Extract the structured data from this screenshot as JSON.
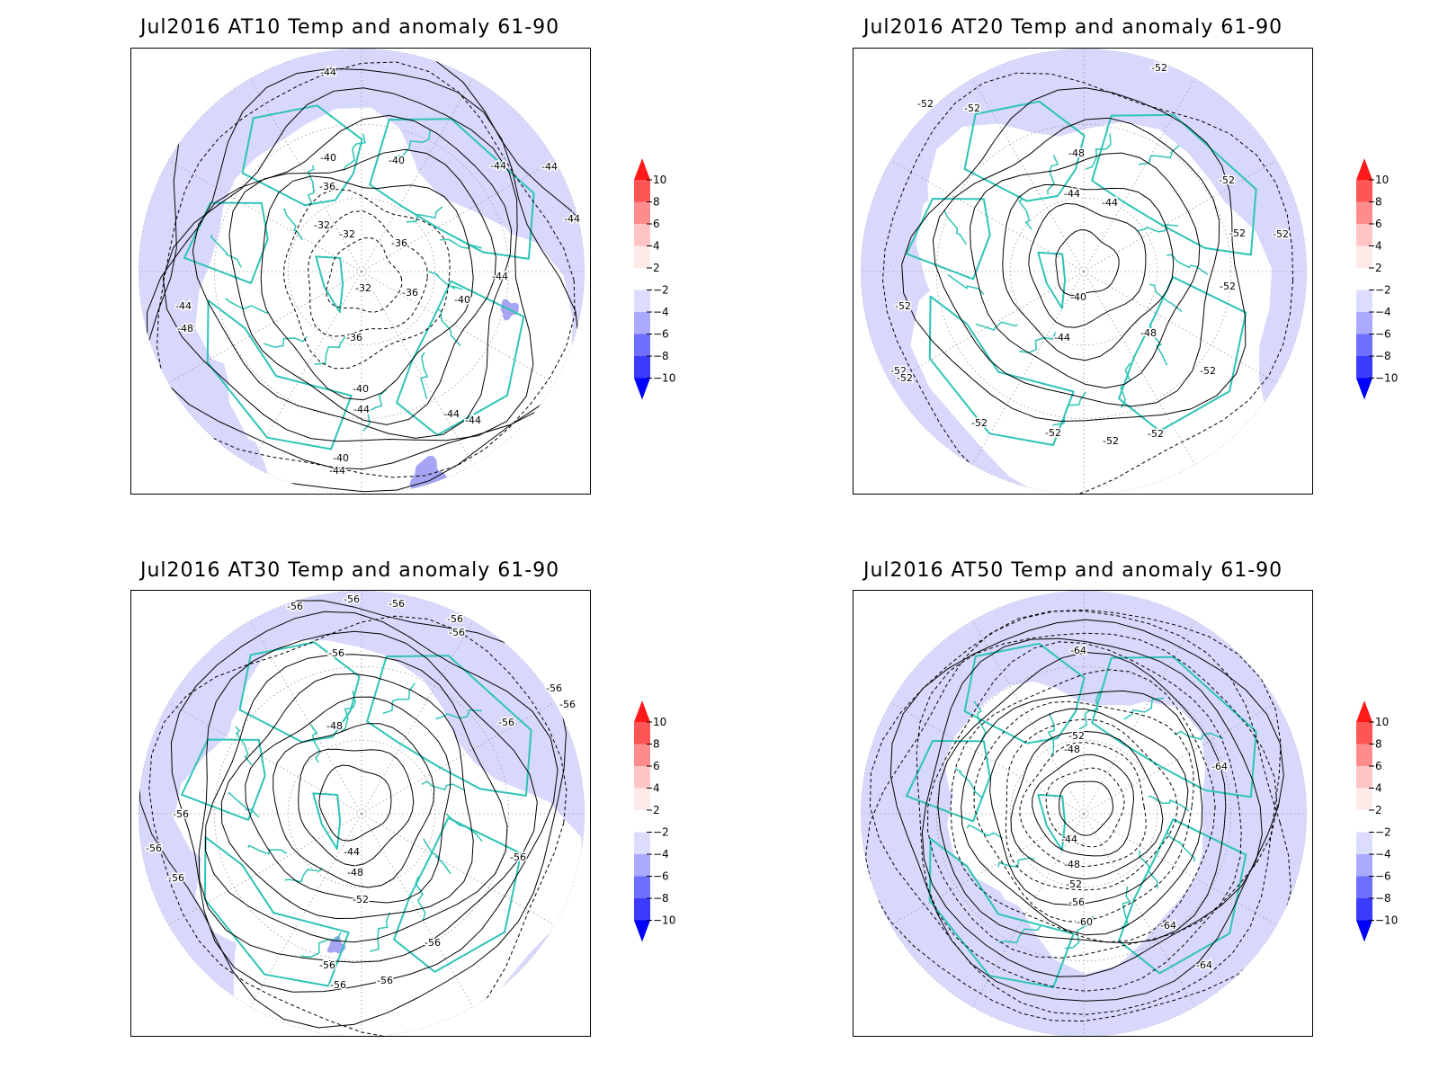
{
  "colorbar": {
    "labels": [
      "10",
      "8",
      "6",
      "4",
      "2",
      "−2",
      "−4",
      "−6",
      "−8",
      "−10"
    ],
    "colors": [
      "#ff1a1a",
      "#ff5555",
      "#ff8c8c",
      "#ffc4c4",
      "#ffeaea",
      "#ffffff",
      "#dcdcff",
      "#aaaaff",
      "#6f6fff",
      "#3b3bff",
      "#0000ff"
    ]
  },
  "colors": {
    "anomaly_fill": "#d8d8fc",
    "anomaly_strong": "#a5a5f3",
    "coastline": "#2ec4b6",
    "contour": "#000000",
    "grid": "#999999"
  },
  "panels": [
    {
      "title": "Jul2016 AT10 Temp and anomaly 61-90",
      "contour_labels": [
        "-44",
        "-40",
        "-40",
        "-36",
        "-32",
        "-32",
        "-32",
        "-36",
        "-36",
        "-40",
        "-36",
        "-40",
        "-44",
        "-44",
        "-44",
        "-44",
        "-44",
        "-44",
        "-44",
        "-48",
        "-40",
        "-44",
        "-44"
      ]
    },
    {
      "title": "Jul2016 AT20 Temp and anomaly 61-90",
      "contour_labels": [
        "-52",
        "-52",
        "-52",
        "-48",
        "-44",
        "-44",
        "-40",
        "-44",
        "-48",
        "-52",
        "-52",
        "-52",
        "-52",
        "-52",
        "-52",
        "-52",
        "-52",
        "-52",
        "-52",
        "-52",
        "-52"
      ]
    },
    {
      "title": "Jul2016 AT30 Temp and anomaly 61-90",
      "contour_labels": [
        "-56",
        "-56",
        "-56",
        "-56",
        "-56",
        "-56",
        "-56",
        "-48",
        "-44",
        "-48",
        "-52",
        "-56",
        "-56",
        "-56",
        "-56",
        "-56",
        "-56",
        "-56",
        "-56",
        "-56",
        "-56"
      ]
    },
    {
      "title": "Jul2016 AT50 Temp and anomaly 61-90",
      "contour_labels": [
        "-64",
        "-52",
        "-48",
        "-64",
        "-44",
        "-48",
        "-52",
        "-56",
        "-60",
        "-64",
        "-64"
      ]
    }
  ]
}
